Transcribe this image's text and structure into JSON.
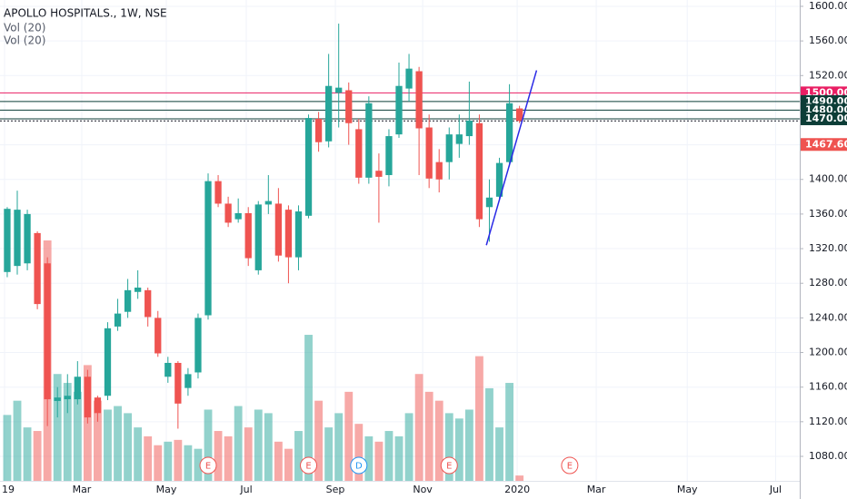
{
  "chart_data": {
    "type": "candlestick",
    "title": "APOLLO HOSPITALS., 1W, NSE",
    "indicators": [
      "Vol (20)",
      "Vol (20)"
    ],
    "up_color": "#26a69a",
    "down_color": "#ef5350",
    "open": [
      1293,
      1300,
      1303,
      1338,
      1303,
      1144,
      1146,
      1146,
      1172,
      1148,
      1150,
      1230,
      1247,
      1270,
      1272,
      1240,
      1172,
      1188,
      1159,
      1177,
      1243,
      1398,
      1372,
      1354,
      1361,
      1295,
      1371,
      1372,
      1365,
      1310,
      1358,
      1470,
      1444,
      1500,
      1503,
      1458,
      1402,
      1410,
      1405,
      1452,
      1505,
      1525,
      1460,
      1420,
      1420,
      1441,
      1450,
      1465,
      1368,
      1380,
      1420,
      1482
    ],
    "high": [
      1368,
      1387,
      1365,
      1340,
      1310,
      1160,
      1175,
      1190,
      1180,
      1150,
      1235,
      1262,
      1285,
      1295,
      1275,
      1248,
      1195,
      1190,
      1182,
      1245,
      1407,
      1405,
      1380,
      1378,
      1368,
      1375,
      1405,
      1390,
      1370,
      1370,
      1475,
      1478,
      1545,
      1580,
      1512,
      1470,
      1496,
      1430,
      1458,
      1535,
      1545,
      1530,
      1475,
      1435,
      1460,
      1475,
      1513,
      1475,
      1400,
      1425,
      1510,
      1485
    ],
    "low": [
      1287,
      1290,
      1295,
      1250,
      1115,
      1125,
      1130,
      1140,
      1118,
      1120,
      1145,
      1225,
      1240,
      1262,
      1230,
      1195,
      1165,
      1112,
      1150,
      1170,
      1238,
      1368,
      1345,
      1350,
      1300,
      1290,
      1360,
      1305,
      1280,
      1295,
      1355,
      1432,
      1437,
      1460,
      1440,
      1395,
      1395,
      1350,
      1392,
      1448,
      1490,
      1405,
      1390,
      1385,
      1400,
      1425,
      1440,
      1345,
      1328,
      1375,
      1415,
      1465
    ],
    "close": [
      1366,
      1365,
      1360,
      1256,
      1146,
      1148,
      1150,
      1172,
      1125,
      1130,
      1228,
      1245,
      1272,
      1275,
      1241,
      1199,
      1188,
      1141,
      1175,
      1240,
      1398,
      1372,
      1350,
      1361,
      1309,
      1371,
      1375,
      1312,
      1310,
      1363,
      1471,
      1443,
      1508,
      1506,
      1465,
      1402,
      1488,
      1403,
      1450,
      1508,
      1528,
      1459,
      1401,
      1400,
      1452,
      1452,
      1468,
      1354,
      1379,
      1419,
      1488,
      1467.6
    ],
    "volume": [
      37,
      45,
      30,
      28,
      135,
      60,
      55,
      50,
      65,
      45,
      40,
      42,
      38,
      30,
      25,
      20,
      22,
      23,
      20,
      18,
      40,
      28,
      25,
      42,
      30,
      40,
      38,
      22,
      18,
      28,
      82,
      45,
      30,
      38,
      50,
      32,
      25,
      22,
      28,
      25,
      38,
      60,
      50,
      45,
      38,
      35,
      40,
      70,
      52,
      30,
      55,
      3
    ],
    "volume_ylim": [
      0,
      270
    ],
    "xlim": [
      -0.72,
      78.9
    ],
    "xticks": [
      {
        "value": -0.27,
        "label": "19"
      },
      {
        "value": 7.42,
        "label": "Mar"
      },
      {
        "value": 15.84,
        "label": "May"
      },
      {
        "value": 23.8,
        "label": "Jul"
      },
      {
        "value": 32.67,
        "label": "Sep"
      },
      {
        "value": 41.36,
        "label": "Nov"
      },
      {
        "value": 50.77,
        "label": "2020"
      },
      {
        "value": 58.64,
        "label": "Mar"
      },
      {
        "value": 67.7,
        "label": "May"
      },
      {
        "value": 76.5,
        "label": "Jul"
      }
    ],
    "ylim": [
      1051.7,
      1607.3
    ],
    "yticks": [
      {
        "value": 1080,
        "label": "1080.00"
      },
      {
        "value": 1120,
        "label": "1120.00"
      },
      {
        "value": 1160,
        "label": "1160.00"
      },
      {
        "value": 1200,
        "label": "1200.00"
      },
      {
        "value": 1240,
        "label": "1240.00"
      },
      {
        "value": 1280,
        "label": "1280.00"
      },
      {
        "value": 1320,
        "label": "1320.00"
      },
      {
        "value": 1360,
        "label": "1360.00"
      },
      {
        "value": 1400,
        "label": "1400.00"
      },
      {
        "value": 1440,
        "label": "1440.00"
      },
      {
        "value": 1480,
        "label": "1480.00"
      },
      {
        "value": 1520,
        "label": "1520.00"
      },
      {
        "value": 1560,
        "label": "1560.00"
      },
      {
        "value": 1600,
        "label": "1600.00"
      }
    ],
    "grid": true,
    "levels": [
      {
        "value": 1500,
        "label": "1500.00",
        "color": "#e91e63",
        "dashed": false
      },
      {
        "value": 1490,
        "label": "1490.00",
        "color": "#0c3d37",
        "dashed": false
      },
      {
        "value": 1480,
        "label": "1480.00",
        "color": "#0c3d37",
        "dashed": false
      },
      {
        "value": 1470,
        "label": "1470.00",
        "color": "#0c3d37",
        "dashed": false
      },
      {
        "value": 1467.6,
        "label": "1467.60",
        "color": "#ef5350",
        "dashed": true
      }
    ],
    "trendline": {
      "color": "#2a2ae6",
      "x": [
        47.7,
        52.7
      ],
      "y": [
        1324,
        1526
      ]
    },
    "events": [
      {
        "label": "E",
        "at": 20,
        "color": "#ef5350"
      },
      {
        "label": "E",
        "at": 30,
        "color": "#ef5350"
      },
      {
        "label": "D",
        "at": 35,
        "color": "#2196f3"
      },
      {
        "label": "E",
        "at": 44,
        "color": "#ef5350"
      },
      {
        "label": "E",
        "at": 56,
        "color": "#ef5350"
      }
    ]
  }
}
